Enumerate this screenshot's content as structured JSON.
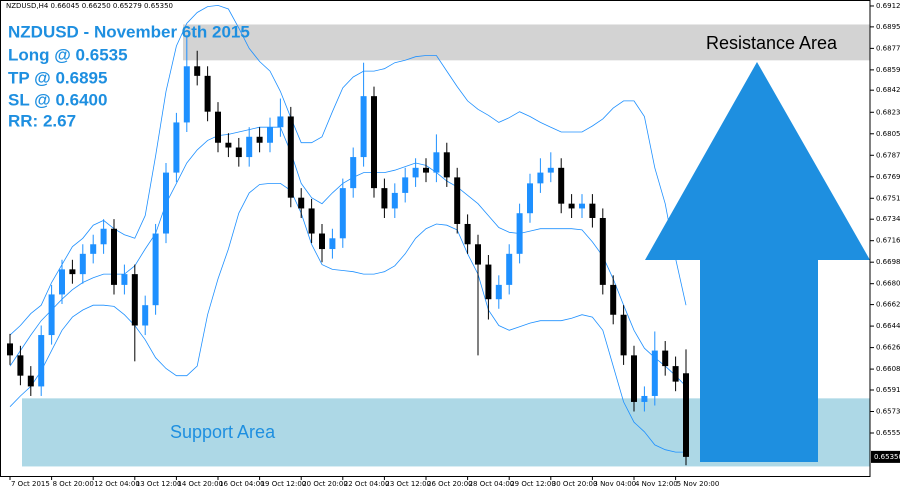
{
  "chart_data": {
    "type": "candlestick",
    "header": "NZDUSD,H4  0.66045 0.66250 0.65279 0.65350",
    "annotations": [
      "NZDUSD - November 6th 2015",
      "Long @ 0.6535",
      "TP @ 0.6895",
      "SL @ 0.6400",
      "RR: 2.67"
    ],
    "zones": [
      {
        "label": "Resistance Area",
        "range": [
          0.6867,
          0.6897
        ],
        "color": "#d3d3d3",
        "text_color": "#000000"
      },
      {
        "label": "Support Area",
        "range": [
          0.6527,
          0.6584
        ],
        "color": "#add8e6",
        "text_color": "#1e8fe0"
      }
    ],
    "up_color": "#1e90ff",
    "down_color": "#000000",
    "ylim": [
      0.6519,
      0.69175
    ],
    "yticks": [
      0.69125,
      {
        "value": 0.6895,
        "label": "0.68950"
      },
      {
        "value": 0.6877,
        "label": "0.68770"
      },
      {
        "value": 0.6859,
        "label": "0.68590"
      },
      {
        "value": 0.6842,
        "label": "0.68420"
      },
      0.68235,
      0.68055,
      0.67875,
      0.67695,
      0.67515,
      {
        "value": 0.6734,
        "label": "0.67340"
      },
      {
        "value": 0.6716,
        "label": "0.67160"
      },
      {
        "value": 0.6698,
        "label": "0.66980"
      },
      {
        "value": 0.668,
        "label": "0.66800"
      },
      0.66625,
      0.66445,
      0.66265,
      0.66085,
      {
        "value": 0.6591,
        "label": "0.65910"
      },
      {
        "value": 0.6573,
        "label": "0.65730"
      },
      {
        "value": 0.6555,
        "label": "0.65550"
      }
    ],
    "current_price": {
      "value": 0.6535,
      "label": "0.65350"
    },
    "categories": [
      "7 Oct 2015",
      null,
      null,
      null,
      "8 Oct 20:00",
      null,
      null,
      null,
      "12 Oct 04:00",
      null,
      null,
      null,
      "13 Oct 12:00",
      null,
      null,
      null,
      "14 Oct 20:00",
      null,
      null,
      null,
      "16 Oct 04:00",
      null,
      null,
      null,
      "19 Oct 12:00",
      null,
      null,
      null,
      "20 Oct 20:00",
      null,
      null,
      null,
      "22 Oct 04:00",
      null,
      null,
      null,
      "23 Oct 12:00",
      null,
      null,
      null,
      "26 Oct 20:00",
      null,
      null,
      null,
      "28 Oct 04:00",
      null,
      null,
      null,
      "29 Oct 12:00",
      null,
      null,
      null,
      "30 Oct 20:00",
      null,
      null,
      null,
      "3 Nov 04:00",
      null,
      null,
      null,
      "4 Nov 12:00",
      null,
      null,
      null,
      "5 Nov 20:00",
      null
    ],
    "open": [
      0.663,
      0.662,
      0.6603,
      0.6594,
      0.6637,
      0.6671,
      0.6692,
      0.6688,
      0.6705,
      0.6713,
      0.6726,
      0.6679,
      0.6688,
      0.6645,
      0.6662,
      0.6722,
      0.6773,
      0.6815,
      0.6862,
      0.6854,
      0.6824,
      0.6798,
      0.6794,
      0.6786,
      0.6803,
      0.6798,
      0.6811,
      0.682,
      0.6752,
      0.6743,
      0.6722,
      0.6709,
      0.6718,
      0.676,
      0.6786,
      0.6837,
      0.676,
      0.6743,
      0.6756,
      0.6769,
      0.6777,
      0.6773,
      0.679,
      0.6769,
      0.673,
      0.6713,
      0.6696,
      0.6667,
      0.6679,
      0.6705,
      0.6739,
      0.6764,
      0.6773,
      0.6777,
      0.6747,
      0.6743,
      0.6747,
      0.6735,
      0.6679,
      0.6654,
      0.662,
      0.6581,
      0.6586,
      0.6624,
      0.6611,
      0.6605
    ],
    "high": [
      0.6638,
      0.6628,
      0.6611,
      0.6645,
      0.6679,
      0.67,
      0.67,
      0.6713,
      0.6721,
      0.6734,
      0.6734,
      0.6696,
      0.6696,
      0.667,
      0.673,
      0.6781,
      0.6823,
      0.6888,
      0.6875,
      0.6862,
      0.6832,
      0.6806,
      0.6802,
      0.6811,
      0.6811,
      0.6819,
      0.6835,
      0.6828,
      0.676,
      0.6751,
      0.673,
      0.6726,
      0.6768,
      0.6794,
      0.6865,
      0.6845,
      0.6768,
      0.6764,
      0.6777,
      0.6785,
      0.6785,
      0.6805,
      0.6798,
      0.6777,
      0.6738,
      0.6721,
      0.6704,
      0.6687,
      0.6713,
      0.6747,
      0.6772,
      0.6785,
      0.679,
      0.6785,
      0.6755,
      0.6755,
      0.6755,
      0.6743,
      0.6687,
      0.6662,
      0.6628,
      0.6594,
      0.664,
      0.6632,
      0.6619,
      0.6625
    ],
    "low": [
      0.6612,
      0.6595,
      0.6586,
      0.6586,
      0.6629,
      0.6663,
      0.668,
      0.668,
      0.6697,
      0.6705,
      0.6671,
      0.6671,
      0.6615,
      0.6637,
      0.6654,
      0.6714,
      0.6765,
      0.6807,
      0.6846,
      0.6816,
      0.679,
      0.6786,
      0.6778,
      0.6778,
      0.679,
      0.679,
      0.6803,
      0.6744,
      0.6735,
      0.6714,
      0.6698,
      0.6701,
      0.671,
      0.6752,
      0.6778,
      0.6752,
      0.6735,
      0.6735,
      0.6748,
      0.6761,
      0.6765,
      0.6765,
      0.6761,
      0.6722,
      0.6705,
      0.662,
      0.665,
      0.6659,
      0.6671,
      0.6697,
      0.6731,
      0.6756,
      0.6765,
      0.6739,
      0.6735,
      0.6735,
      0.6727,
      0.6671,
      0.6646,
      0.6612,
      0.6573,
      0.6573,
      0.6578,
      0.6603,
      0.659,
      0.6528
    ],
    "close": [
      0.662,
      0.6603,
      0.6594,
      0.6637,
      0.6671,
      0.6692,
      0.6688,
      0.6705,
      0.6713,
      0.6726,
      0.6679,
      0.6688,
      0.6645,
      0.6662,
      0.6722,
      0.6773,
      0.6815,
      0.6862,
      0.6854,
      0.6824,
      0.6798,
      0.6794,
      0.6786,
      0.6803,
      0.6798,
      0.6811,
      0.682,
      0.6752,
      0.6743,
      0.6722,
      0.6709,
      0.6718,
      0.676,
      0.6786,
      0.6837,
      0.676,
      0.6743,
      0.6756,
      0.6769,
      0.6777,
      0.6773,
      0.679,
      0.6769,
      0.673,
      0.6713,
      0.6696,
      0.6667,
      0.6679,
      0.6705,
      0.6739,
      0.6764,
      0.6773,
      0.6777,
      0.6747,
      0.6743,
      0.6747,
      0.6735,
      0.6679,
      0.6654,
      0.662,
      0.6581,
      0.6586,
      0.6624,
      0.6611,
      0.6598,
      0.6535
    ],
    "lines": [
      {
        "color": "#1e90ff",
        "values": [
          0.6637,
          0.6645,
          0.6655,
          0.6662,
          0.6681,
          0.6696,
          0.6711,
          0.6718,
          0.6729,
          0.6733,
          0.6726,
          0.6721,
          0.6718,
          0.6737,
          0.6787,
          0.6841,
          0.6879,
          0.6898,
          0.6907,
          0.6912,
          0.6913,
          0.691,
          0.6894,
          0.6877,
          0.6866,
          0.6858,
          0.6841,
          0.6819,
          0.6798,
          0.6798,
          0.6803,
          0.6824,
          0.6844,
          0.6853,
          0.6858,
          0.6858,
          0.686,
          0.6865,
          0.6867,
          0.687,
          0.6871,
          0.6871,
          0.6858,
          0.6845,
          0.6833,
          0.6826,
          0.6821,
          0.6815,
          0.6819,
          0.6824,
          0.682,
          0.6815,
          0.6811,
          0.6807,
          0.6807,
          0.6807,
          0.6812,
          0.6818,
          0.6827,
          0.6833,
          0.6833,
          0.682,
          0.6777,
          0.6747,
          0.6701,
          0.6662
        ]
      },
      {
        "color": "#1e90ff",
        "values": [
          0.6611,
          0.6624,
          0.6637,
          0.6649,
          0.6658,
          0.6667,
          0.6675,
          0.6681,
          0.6685,
          0.6688,
          0.6688,
          0.6688,
          0.6695,
          0.6709,
          0.6722,
          0.6747,
          0.6764,
          0.6781,
          0.6792,
          0.68,
          0.6804,
          0.6805,
          0.6807,
          0.6809,
          0.6811,
          0.6811,
          0.6811,
          0.679,
          0.6764,
          0.6752,
          0.6747,
          0.6756,
          0.6764,
          0.6769,
          0.6773,
          0.6773,
          0.6773,
          0.6775,
          0.6778,
          0.6781,
          0.6779,
          0.6773,
          0.6766,
          0.6761,
          0.6754,
          0.6747,
          0.6737,
          0.6727,
          0.6723,
          0.6722,
          0.6724,
          0.6726,
          0.6726,
          0.6726,
          0.6726,
          0.6725,
          0.6715,
          0.6703,
          0.6684,
          0.6662,
          0.6641,
          0.6626,
          0.6618,
          0.6611,
          0.6603,
          0.6594
        ]
      },
      {
        "color": "#1e90ff",
        "values": [
          0.6577,
          0.6586,
          0.6594,
          0.6607,
          0.6624,
          0.6641,
          0.6652,
          0.6658,
          0.6662,
          0.6662,
          0.6661,
          0.6654,
          0.6645,
          0.6633,
          0.6618,
          0.6609,
          0.6603,
          0.6603,
          0.6611,
          0.6654,
          0.6684,
          0.6709,
          0.6739,
          0.6756,
          0.6763,
          0.6764,
          0.6764,
          0.6758,
          0.6739,
          0.6713,
          0.6696,
          0.6692,
          0.6691,
          0.669,
          0.6688,
          0.6688,
          0.669,
          0.6695,
          0.6705,
          0.6718,
          0.6726,
          0.673,
          0.6729,
          0.6725,
          0.6705,
          0.6688,
          0.6658,
          0.6645,
          0.6641,
          0.6644,
          0.6647,
          0.6649,
          0.6649,
          0.6649,
          0.6651,
          0.6654,
          0.6652,
          0.6641,
          0.6611,
          0.6581,
          0.6564,
          0.6556,
          0.6545,
          0.6541,
          0.6539,
          0.6539
        ]
      }
    ]
  }
}
